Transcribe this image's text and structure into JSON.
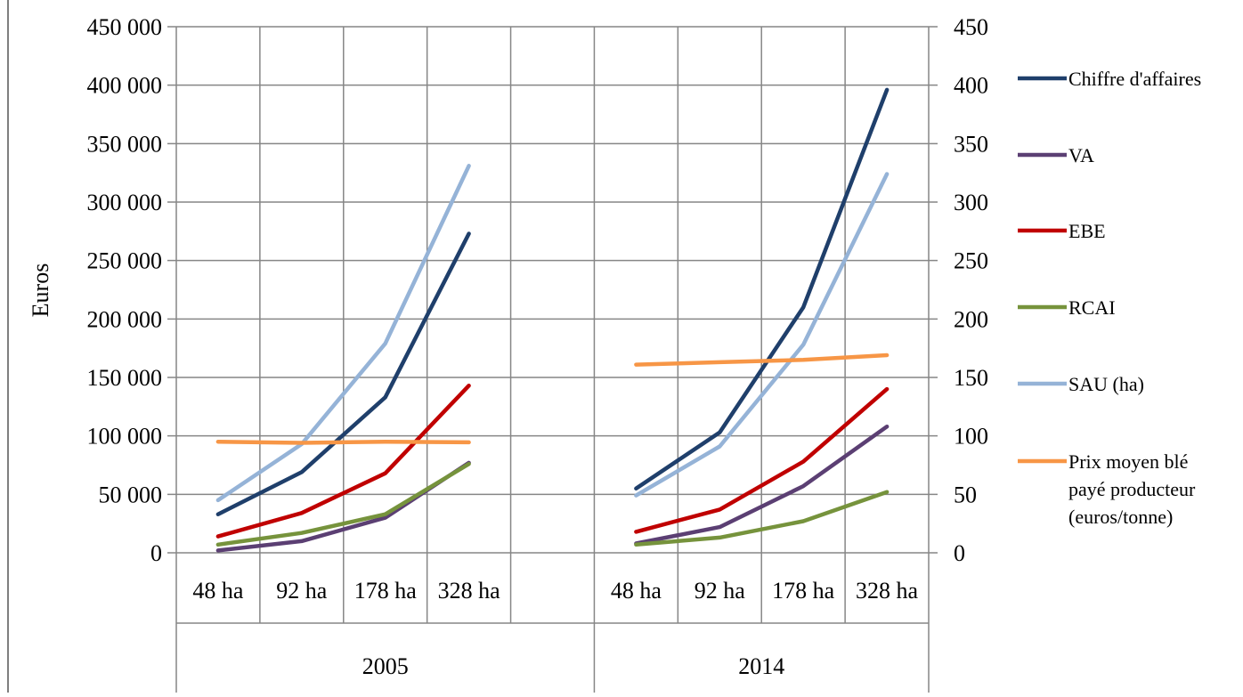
{
  "chart_data": {
    "type": "line",
    "title": "",
    "ylabel": "Euros",
    "ylim": [
      0,
      450000
    ],
    "y2lim": [
      0,
      450
    ],
    "y_ticks": [
      "0",
      "50 000",
      "100 000",
      "150 000",
      "200 000",
      "250 000",
      "300 000",
      "350 000",
      "400 000",
      "450 000"
    ],
    "y2_ticks": [
      "0",
      "50",
      "100",
      "150",
      "200",
      "250",
      "300",
      "350",
      "400",
      "450"
    ],
    "groups": [
      {
        "label": "2005",
        "categories": [
          "48 ha",
          "92 ha",
          "178 ha",
          "328 ha"
        ]
      },
      {
        "label": "2014",
        "categories": [
          "48 ha",
          "92 ha",
          "178 ha",
          "328 ha"
        ]
      }
    ],
    "grid": "horizontal-major",
    "legend_position": "right",
    "series": [
      {
        "name": "Chiffre d'affaires",
        "color": "#1f3f6b",
        "axis": "left",
        "values_2005": [
          33000,
          69000,
          133000,
          273000
        ],
        "values_2014": [
          55000,
          103000,
          210000,
          396000
        ]
      },
      {
        "name": "VA",
        "color": "#5b3f73",
        "axis": "left",
        "values_2005": [
          2000,
          10000,
          30000,
          77000
        ],
        "values_2014": [
          8000,
          22000,
          57000,
          108000
        ]
      },
      {
        "name": "EBE",
        "color": "#c00000",
        "axis": "left",
        "values_2005": [
          14000,
          34000,
          68000,
          143000
        ],
        "values_2014": [
          18000,
          37000,
          78000,
          140000
        ]
      },
      {
        "name": "RCAI",
        "color": "#76933c",
        "axis": "left",
        "values_2005": [
          7000,
          17000,
          33000,
          76000
        ],
        "values_2014": [
          7000,
          13000,
          27000,
          52000
        ]
      },
      {
        "name": "SAU (ha)",
        "color": "#95b3d7",
        "axis": "right",
        "values_2005": [
          45,
          93,
          179,
          331
        ],
        "values_2014": [
          49,
          91,
          178,
          324
        ]
      },
      {
        "name": "Prix moyen blé payé producteur (euros/tonne)",
        "color": "#f79646",
        "axis": "right",
        "legend_lines": [
          "Prix moyen blé",
          "payé producteur",
          "(euros/tonne)"
        ],
        "values_2005": [
          95,
          94,
          95,
          94.5
        ],
        "values_2014": [
          161,
          163,
          165,
          169
        ]
      }
    ]
  }
}
